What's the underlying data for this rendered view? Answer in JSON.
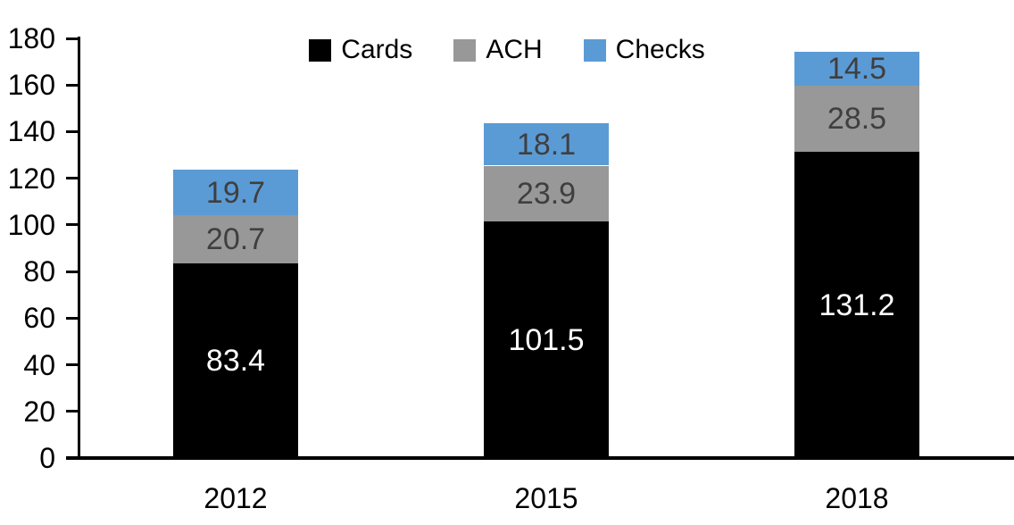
{
  "chart_data": {
    "type": "bar",
    "stacked": true,
    "title": "",
    "xlabel": "",
    "ylabel": "",
    "categories": [
      "2012",
      "2015",
      "2018"
    ],
    "series": [
      {
        "name": "Cards",
        "color": "#000000",
        "label_color": "#ffffff",
        "values": [
          83.4,
          101.5,
          131.2
        ]
      },
      {
        "name": "ACH",
        "color": "#989898",
        "label_color": "#3f3f3f",
        "values": [
          20.7,
          23.9,
          28.5
        ]
      },
      {
        "name": "Checks",
        "color": "#5b9bd5",
        "label_color": "#3f3f3f",
        "values": [
          19.7,
          18.1,
          14.5
        ]
      }
    ],
    "stack_order": "bottom-to-top",
    "totals": [
      123.8,
      143.5,
      174.2
    ],
    "ylim": [
      0,
      180
    ],
    "ytick_interval": 20,
    "ytick_labels": [
      "0",
      "20",
      "40",
      "60",
      "80",
      "100",
      "120",
      "140",
      "160",
      "180"
    ],
    "legend": {
      "position": "top-center",
      "entries": [
        "Cards",
        "ACH",
        "Checks"
      ]
    },
    "grid": false,
    "axis_color": "#000000",
    "text_color": "#000000",
    "background_color": "#ffffff"
  }
}
